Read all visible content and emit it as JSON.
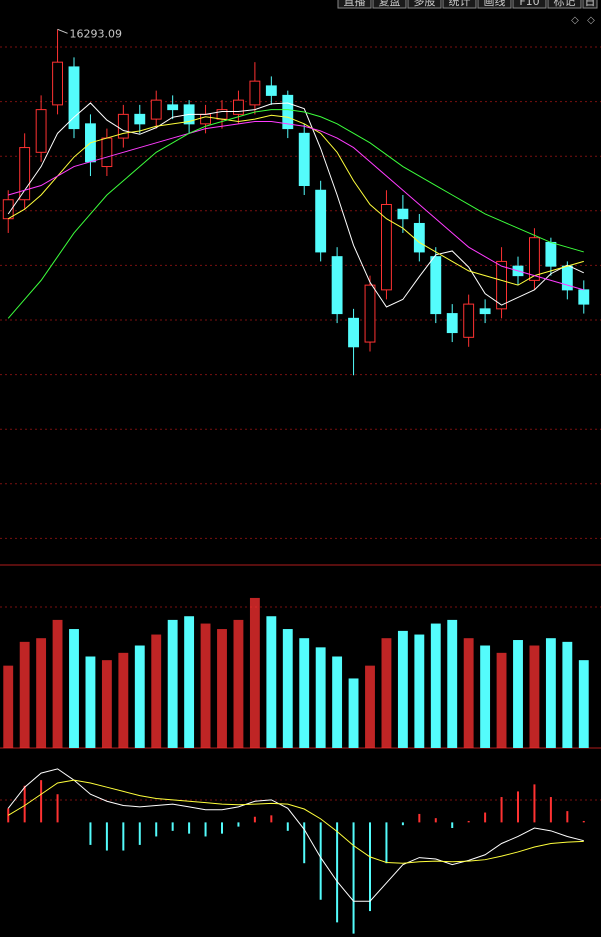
{
  "toolbar": [
    "直播",
    "复盘",
    "多股",
    "统计",
    "画线",
    "F10",
    "标记",
    "日"
  ],
  "chart_data": [
    {
      "type": "candlestick",
      "up_color": "#ff3232",
      "down_color": "#54fcfc",
      "ylim": [
        5000,
        16700
      ],
      "open": [
        12300,
        12700,
        13700,
        14700,
        15500,
        14300,
        13400,
        14000,
        14500,
        14400,
        14700,
        14700,
        14300,
        14400,
        14500,
        14700,
        15100,
        14900,
        14100,
        12900,
        11500,
        10200,
        9700,
        10800,
        12500,
        12200,
        11500,
        10300,
        9800,
        10400,
        10400,
        11300,
        11000,
        11800,
        11300,
        10800
      ],
      "high": [
        12900,
        14100,
        14900,
        16293.09,
        15700,
        14500,
        14200,
        14700,
        14700,
        15000,
        14900,
        14800,
        14700,
        14800,
        15000,
        15600,
        15300,
        15000,
        14300,
        13100,
        11700,
        10400,
        11100,
        12900,
        12800,
        12400,
        11700,
        10500,
        10700,
        10600,
        11700,
        11500,
        12100,
        11900,
        11400,
        11000
      ],
      "low": [
        12000,
        12500,
        13500,
        14500,
        14000,
        13200,
        13200,
        13800,
        14100,
        14200,
        14400,
        14100,
        14100,
        14200,
        14300,
        14500,
        14700,
        14000,
        12800,
        11400,
        10100,
        9000,
        9500,
        10600,
        12000,
        11400,
        10100,
        9700,
        9600,
        10100,
        10200,
        10900,
        10800,
        11100,
        10600,
        10300
      ],
      "close": [
        12700,
        13800,
        14600,
        15600,
        14200,
        13500,
        14000,
        14500,
        14300,
        14800,
        14600,
        14300,
        14500,
        14600,
        14800,
        15200,
        14900,
        14200,
        13000,
        11600,
        10300,
        9600,
        10900,
        12600,
        12300,
        11600,
        10300,
        9900,
        10500,
        10300,
        11400,
        11100,
        11900,
        11300,
        10800,
        10500
      ],
      "series": [
        {
          "color": "#ffffff",
          "values": [
            12400,
            12900,
            13400,
            14100,
            14440,
            14740,
            14380,
            14160,
            14080,
            14220,
            14440,
            14500,
            14500,
            14560,
            14560,
            14600,
            14720,
            14740,
            14620,
            13780,
            12800,
            11740,
            10960,
            10440,
            10600,
            11080,
            11540,
            11620,
            11280,
            10720,
            10480,
            10640,
            10800,
            11140,
            11320,
            11160
          ]
        },
        {
          "color": "#ffff3c",
          "values": [
            12300,
            12500,
            12800,
            13200,
            13600,
            13900,
            14000,
            14100,
            14150,
            14250,
            14300,
            14350,
            14450,
            14400,
            14350,
            14400,
            14480,
            14440,
            14300,
            14100,
            13700,
            13100,
            12600,
            12300,
            12100,
            11800,
            11600,
            11400,
            11200,
            11100,
            11000,
            10900,
            11100,
            11200,
            11300,
            11400
          ]
        },
        {
          "color": "#ff3cff",
          "values": [
            12800,
            12900,
            13000,
            13200,
            13400,
            13500,
            13600,
            13700,
            13800,
            13900,
            14000,
            14100,
            14200,
            14250,
            14300,
            14350,
            14350,
            14300,
            14250,
            14150,
            14000,
            13800,
            13500,
            13200,
            12900,
            12600,
            12300,
            12000,
            11700,
            11500,
            11300,
            11200,
            11100,
            11000,
            10900,
            10800
          ]
        },
        {
          "color": "#3cff3c",
          "values": [
            10200,
            10600,
            11000,
            11500,
            12000,
            12400,
            12800,
            13100,
            13400,
            13700,
            13900,
            14100,
            14250,
            14350,
            14450,
            14550,
            14600,
            14600,
            14550,
            14450,
            14300,
            14100,
            13900,
            13650,
            13400,
            13200,
            13000,
            12800,
            12600,
            12400,
            12250,
            12100,
            11950,
            11800,
            11700,
            11600
          ]
        }
      ]
    },
    {
      "type": "bar",
      "ylim": [
        0,
        1000
      ],
      "values": [
        450,
        580,
        600,
        700,
        650,
        500,
        480,
        520,
        560,
        620,
        700,
        720,
        680,
        650,
        700,
        820,
        720,
        650,
        600,
        550,
        500,
        380,
        450,
        600,
        640,
        620,
        680,
        700,
        600,
        560,
        520,
        590,
        560,
        600,
        580,
        480
      ]
    },
    {
      "type": "macd",
      "ylim": [
        -800,
        500
      ],
      "series": [
        {
          "color": "#ffffff",
          "values": [
            100,
            250,
            350,
            380,
            300,
            200,
            150,
            120,
            110,
            120,
            130,
            110,
            90,
            90,
            110,
            150,
            160,
            100,
            -50,
            -250,
            -420,
            -560,
            -560,
            -430,
            -300,
            -250,
            -260,
            -300,
            -270,
            -230,
            -150,
            -100,
            -40,
            -60,
            -100,
            -130
          ]
        },
        {
          "color": "#ffff3c",
          "values": [
            50,
            120,
            200,
            280,
            300,
            280,
            250,
            220,
            190,
            170,
            160,
            150,
            140,
            130,
            125,
            130,
            135,
            130,
            95,
            25,
            -65,
            -165,
            -245,
            -285,
            -290,
            -280,
            -275,
            -280,
            -275,
            -265,
            -240,
            -210,
            -175,
            -150,
            -140,
            -135
          ]
        }
      ],
      "histogram": [
        100,
        260,
        300,
        200,
        0,
        -160,
        -200,
        -200,
        -160,
        -100,
        -60,
        -80,
        -100,
        -80,
        -30,
        40,
        50,
        -60,
        -290,
        -550,
        -710,
        -790,
        -630,
        -290,
        -20,
        60,
        30,
        -40,
        10,
        70,
        180,
        220,
        270,
        180,
        80,
        10
      ]
    }
  ]
}
